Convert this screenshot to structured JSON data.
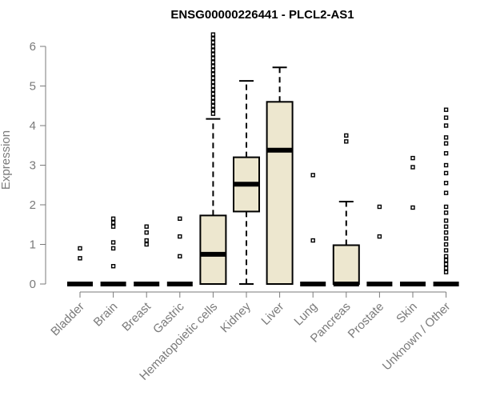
{
  "chart_data": {
    "type": "boxplot",
    "title": "ENSG00000226441 - PLCL2-AS1",
    "xlabel": "",
    "ylabel": "Expression",
    "ylim": [
      0,
      6.3
    ],
    "yticks": [
      "0",
      "1",
      "2",
      "3",
      "4",
      "5",
      "6"
    ],
    "box_color": "#ede7cf",
    "axis_color": "#7a7a7a",
    "categories": [
      "Bladder",
      "Brain",
      "Breast",
      "Gastric",
      "Hematopoietic cells",
      "Kidney",
      "Liver",
      "Lung",
      "Pancreas",
      "Prostate",
      "Skin",
      "Unknown / Other"
    ],
    "boxes": [
      {
        "name": "Bladder",
        "q1": 0,
        "median": 0,
        "q3": 0,
        "whisker_low": 0,
        "whisker_high": 0,
        "outliers": [
          0.65,
          0.9
        ]
      },
      {
        "name": "Brain",
        "q1": 0,
        "median": 0,
        "q3": 0,
        "whisker_low": 0,
        "whisker_high": 0,
        "outliers": [
          0.45,
          0.9,
          1.05,
          1.45,
          1.55,
          1.65
        ]
      },
      {
        "name": "Breast",
        "q1": 0,
        "median": 0,
        "q3": 0,
        "whisker_low": 0,
        "whisker_high": 0,
        "outliers": [
          1.0,
          1.1,
          1.3,
          1.45
        ]
      },
      {
        "name": "Gastric",
        "q1": 0,
        "median": 0,
        "q3": 0,
        "whisker_low": 0,
        "whisker_high": 0,
        "outliers": [
          0.7,
          1.2,
          1.65
        ]
      },
      {
        "name": "Hematopoietic cells",
        "q1": 0,
        "median": 0.75,
        "q3": 1.73,
        "whisker_low": 0,
        "whisker_high": 4.17,
        "outliers": [
          4.3,
          4.4,
          4.5,
          4.6,
          4.7,
          4.8,
          4.9,
          5.0,
          5.1,
          5.2,
          5.3,
          5.4,
          5.5,
          5.6,
          5.7,
          5.8,
          5.9,
          6.0,
          6.1,
          6.2,
          6.3
        ]
      },
      {
        "name": "Kidney",
        "q1": 1.83,
        "median": 2.52,
        "q3": 3.2,
        "whisker_low": 0,
        "whisker_high": 5.13,
        "outliers": []
      },
      {
        "name": "Liver",
        "q1": 0,
        "median": 3.38,
        "q3": 4.6,
        "whisker_low": 0,
        "whisker_high": 5.47,
        "outliers": []
      },
      {
        "name": "Lung",
        "q1": 0,
        "median": 0,
        "q3": 0,
        "whisker_low": 0,
        "whisker_high": 0,
        "outliers": [
          1.1,
          2.75
        ]
      },
      {
        "name": "Pancreas",
        "q1": 0,
        "median": 0,
        "q3": 0.98,
        "whisker_low": 0,
        "whisker_high": 2.08,
        "outliers": [
          3.6,
          3.75
        ]
      },
      {
        "name": "Prostate",
        "q1": 0,
        "median": 0,
        "q3": 0,
        "whisker_low": 0,
        "whisker_high": 0,
        "outliers": [
          1.2,
          1.95
        ]
      },
      {
        "name": "Skin",
        "q1": 0,
        "median": 0,
        "q3": 0,
        "whisker_low": 0,
        "whisker_high": 0,
        "outliers": [
          1.93,
          2.95,
          3.18
        ]
      },
      {
        "name": "Unknown / Other",
        "q1": 0,
        "median": 0,
        "q3": 0,
        "whisker_low": 0,
        "whisker_high": 0,
        "outliers": [
          0.3,
          0.4,
          0.5,
          0.6,
          0.7,
          0.85,
          1.0,
          1.15,
          1.3,
          1.45,
          1.6,
          1.8,
          1.95,
          2.3,
          2.55,
          2.8,
          3.0,
          3.3,
          3.55,
          3.7,
          4.0,
          4.2,
          4.4
        ]
      }
    ]
  }
}
